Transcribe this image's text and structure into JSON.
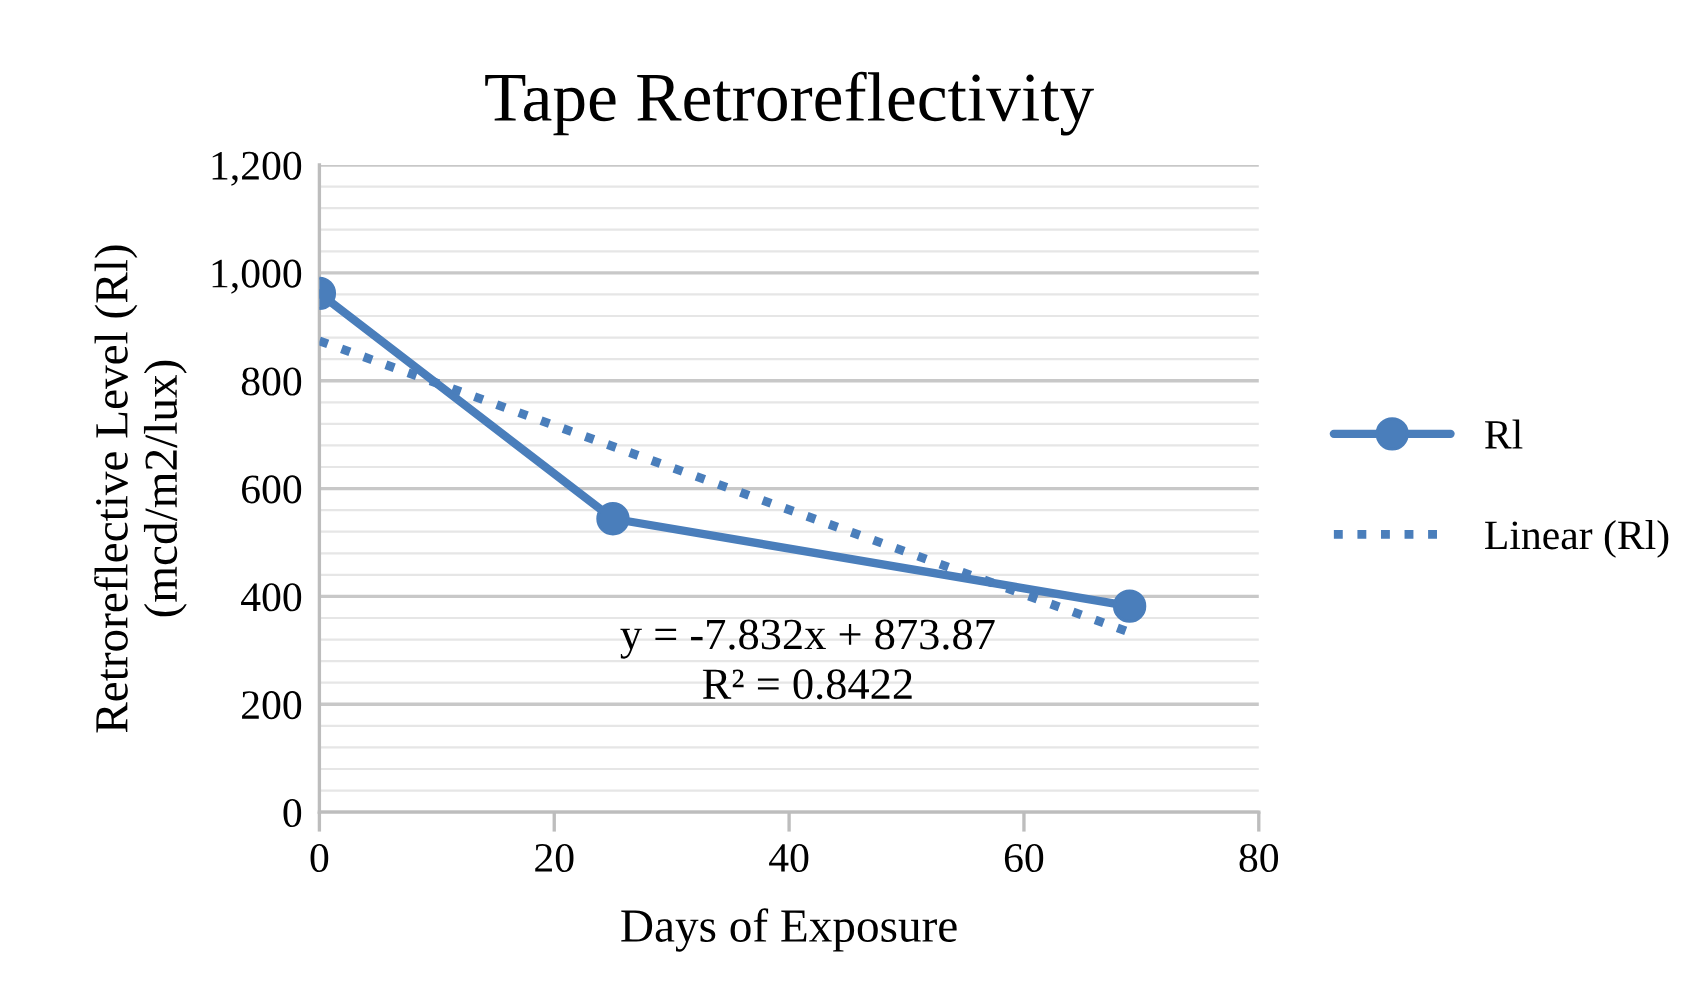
{
  "chart_data": {
    "type": "line",
    "title": "Tape Retroreflectivity",
    "xlabel": "Days of Exposure",
    "ylabel": "Retroreflective Level (Rl)\n(mcd/m2/lux)",
    "series": [
      {
        "name": "Rl",
        "color": "#4a7ebb",
        "x": [
          0,
          25,
          69
        ],
        "values": [
          962,
          544,
          382
        ],
        "marker": "circle",
        "line_style": "solid"
      },
      {
        "name": "Linear (Rl)",
        "color": "#4a7ebb",
        "x": [
          0,
          69
        ],
        "values": [
          873.9,
          333.5
        ],
        "marker": "none",
        "line_style": "dotted"
      }
    ],
    "annotations": [
      "y = -7.832x + 873.87\nR² = 0.8422"
    ],
    "xlim": [
      0,
      80
    ],
    "xticks": [
      0,
      20,
      40,
      60,
      80
    ],
    "ylim": [
      0,
      1200
    ],
    "yticks": [
      0,
      200,
      400,
      600,
      800,
      {
        "value": 1000,
        "label": "1,000"
      },
      {
        "value": 1200,
        "label": "1,200"
      }
    ],
    "grid": "y",
    "legend": "right"
  }
}
